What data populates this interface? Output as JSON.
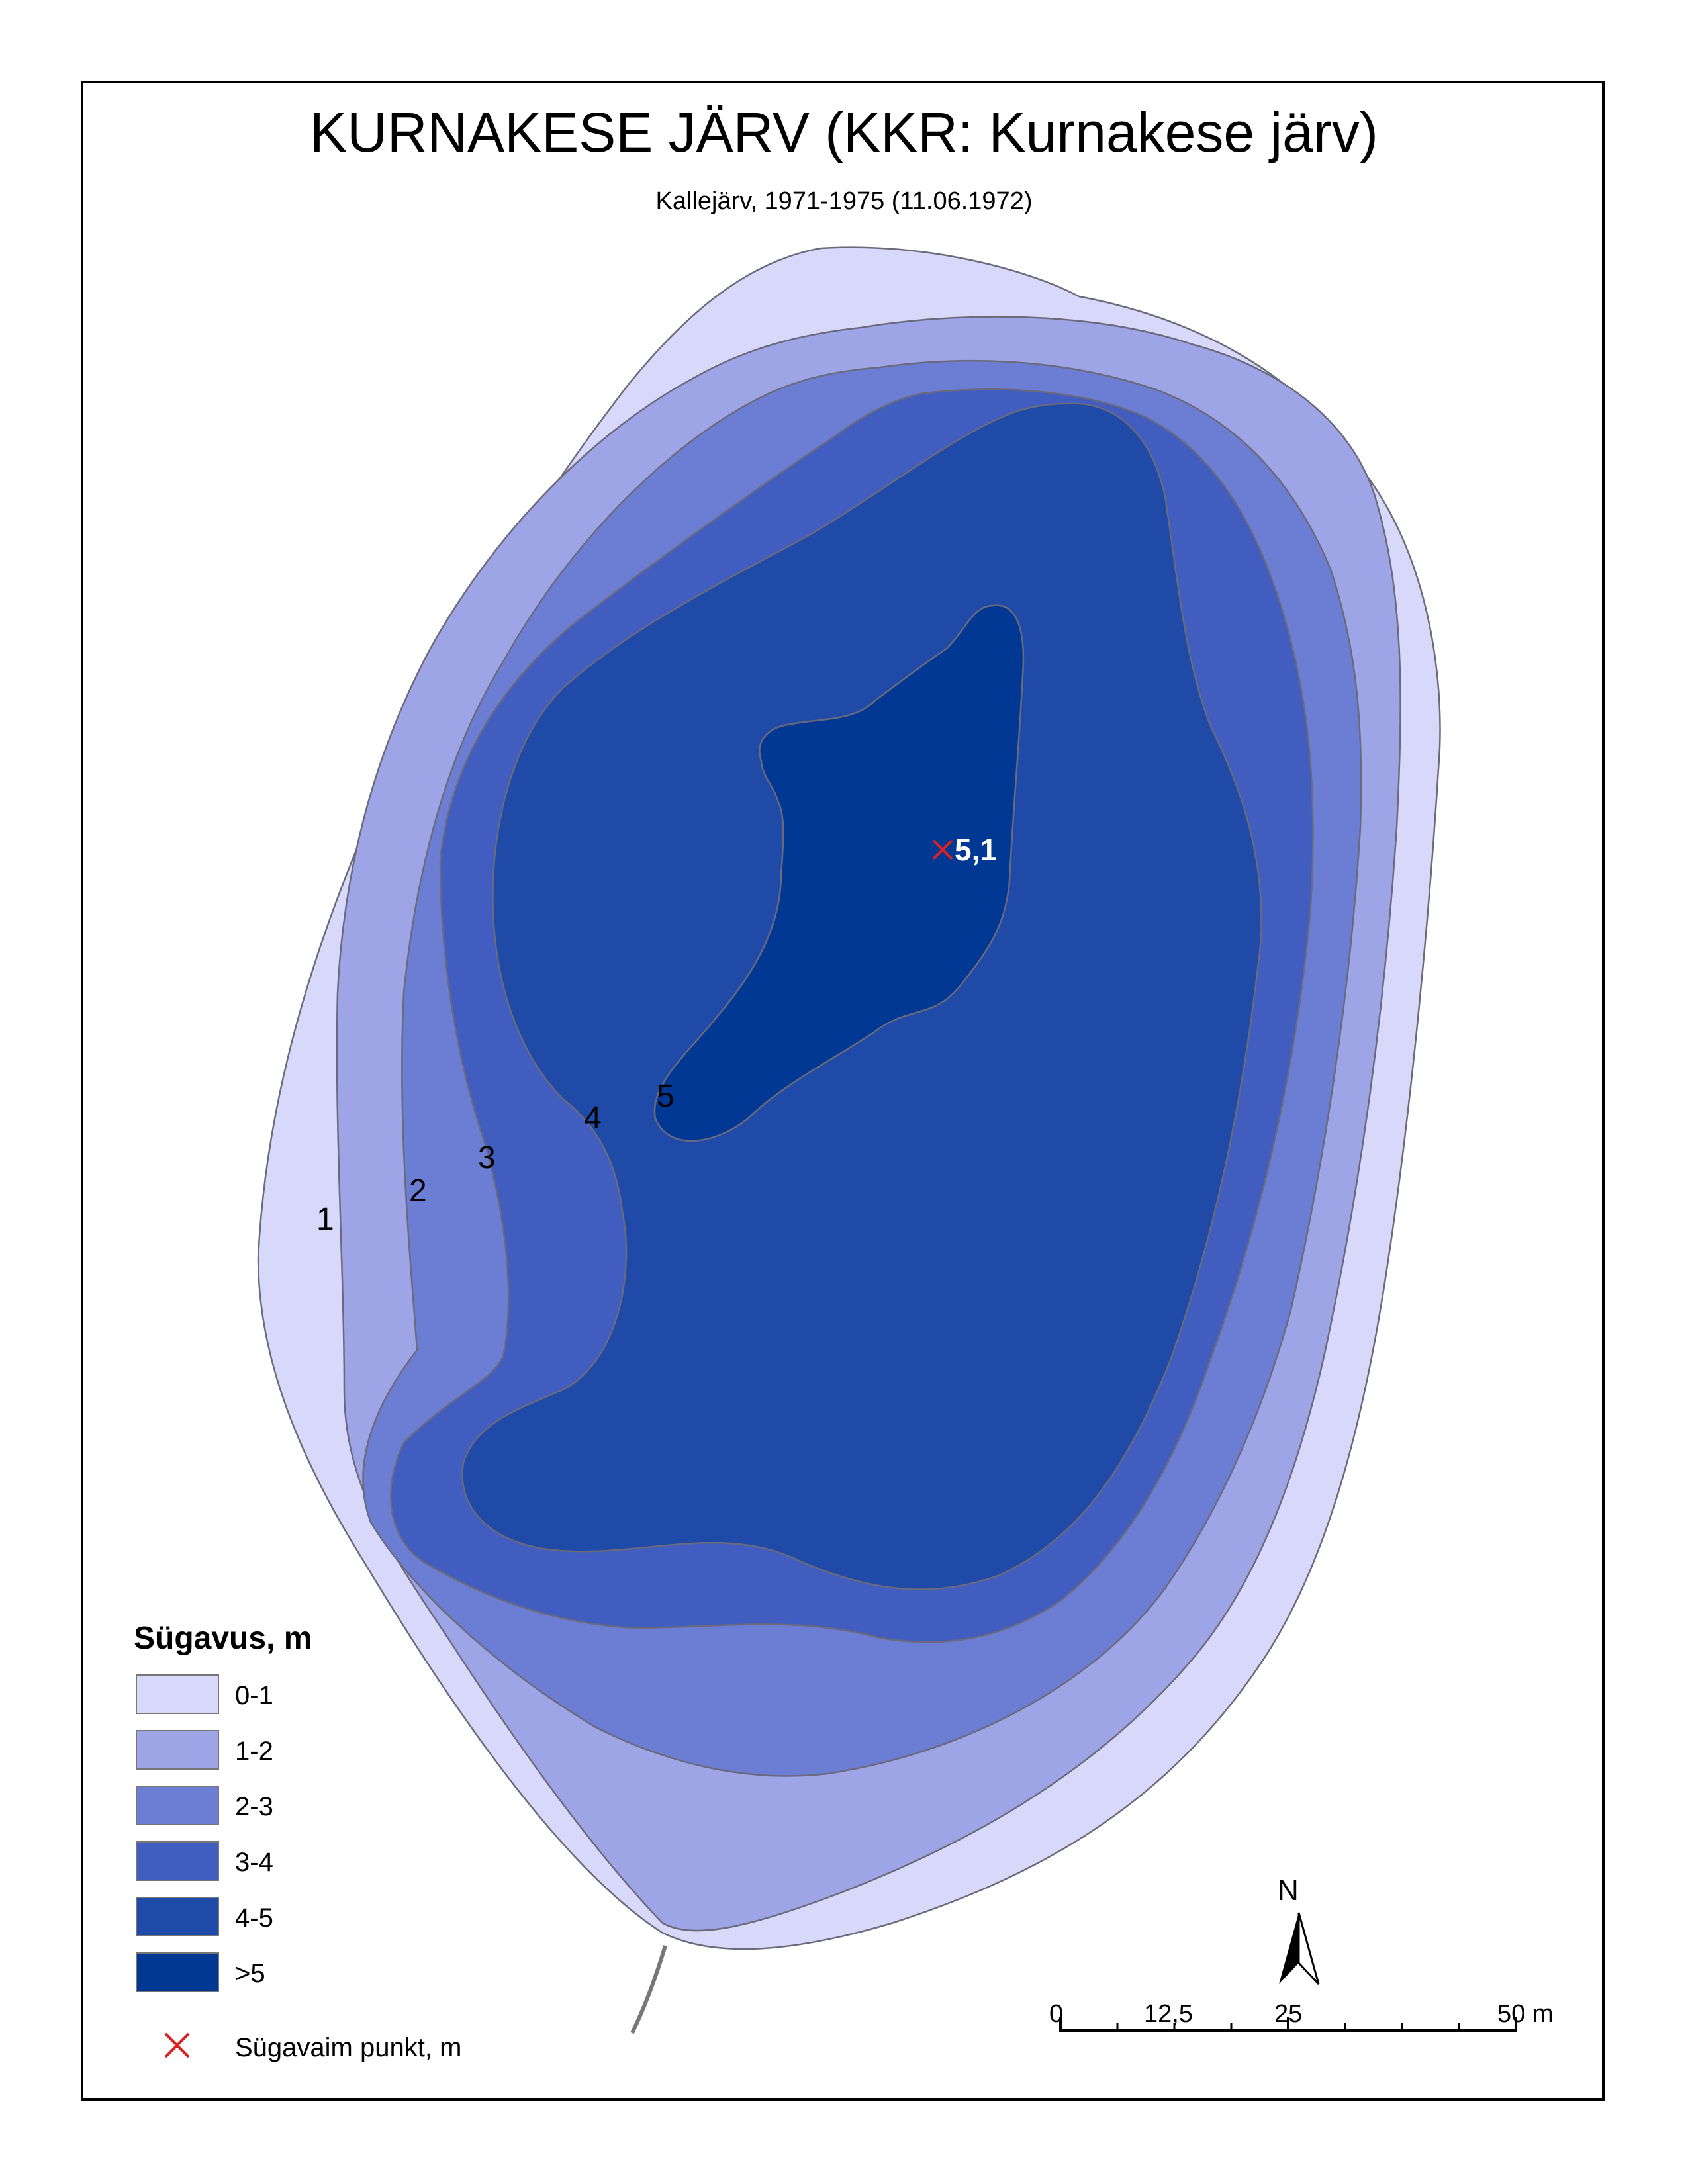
{
  "title": "KURNAKESE JÄRV (KKR: Kurnakese järv)",
  "subtitle": "Kallejärv, 1971-1975 (11.06.1972)",
  "contour_labels": [
    "1",
    "2",
    "3",
    "4",
    "5"
  ],
  "deepest_point_value": "5,1",
  "legend": {
    "title": "Sügavus, m",
    "items": [
      {
        "label": "0-1",
        "color": "#d8d8fa"
      },
      {
        "label": "1-2",
        "color": "#9ea5e6"
      },
      {
        "label": "2-3",
        "color": "#6c7ed3"
      },
      {
        "label": "3-4",
        "color": "#415dbf"
      },
      {
        "label": "4-5",
        "color": "#1f4aa8"
      },
      {
        "label": ">5",
        "color": "#003893"
      }
    ],
    "marker_label": "Sügavaim punkt, m",
    "marker_color": "#e02020"
  },
  "north_arrow": "N",
  "scale_bar": {
    "labels": [
      "0",
      "12,5",
      "25",
      "50 m"
    ]
  }
}
